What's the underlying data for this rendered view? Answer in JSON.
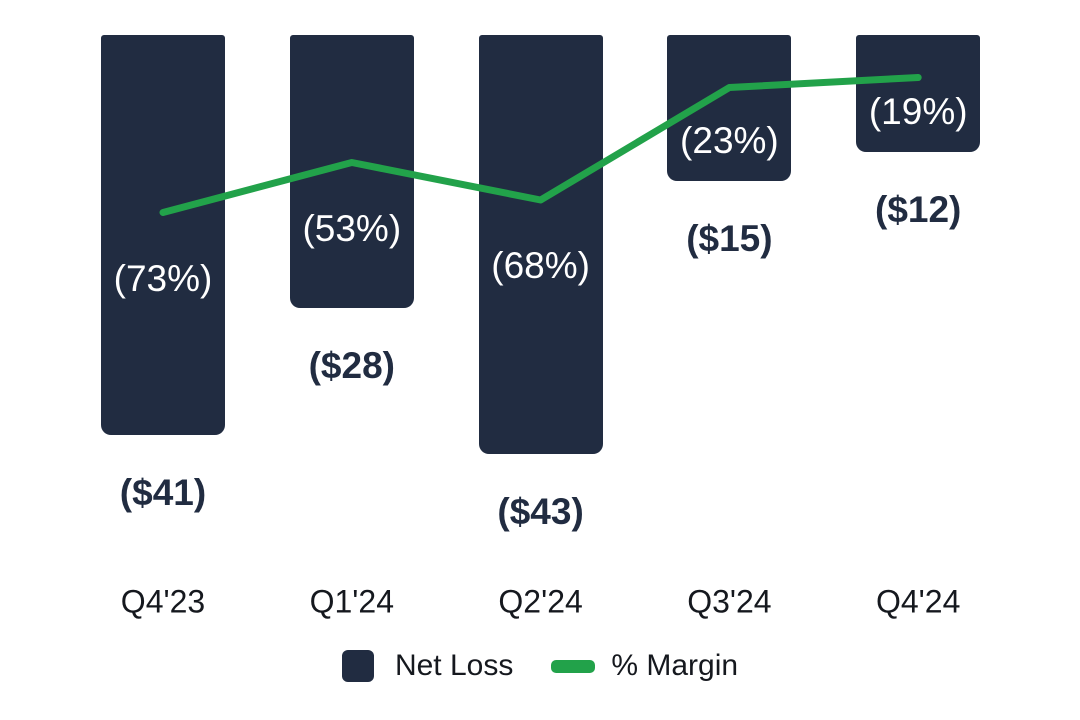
{
  "chart_data": {
    "type": "bar",
    "subtype": "bar-line-combo",
    "title": "",
    "xlabel": "",
    "ylabel": "",
    "grid": false,
    "axes_visible": false,
    "background_color": "#FFFFFF",
    "categories": [
      "Q4'23",
      "Q1'24",
      "Q2'24",
      "Q3'24",
      "Q4'24"
    ],
    "series": [
      {
        "name": "Net Loss",
        "type": "bar",
        "unit": "$ millions (negative, shown in parentheses)",
        "values": [
          -41,
          -28,
          -43,
          -15,
          -12
        ],
        "labels": [
          "($41)",
          "($28)",
          "($43)",
          "($15)",
          "($12)"
        ],
        "color": "#212C41",
        "label_color": "#212C41"
      },
      {
        "name": "% Margin",
        "type": "line",
        "unit": "percent (negative, shown in parentheses)",
        "values": [
          -73,
          -53,
          -68,
          -23,
          -19
        ],
        "labels": [
          "(73%)",
          "(53%)",
          "(68%)",
          "(23%)",
          "(19%)"
        ],
        "color": "#22A24A",
        "label_color": "#FFFFFF"
      }
    ],
    "legend": {
      "position": "bottom",
      "items": [
        {
          "label": "Net Loss",
          "swatch": "square",
          "color": "#212C41"
        },
        {
          "label": "% Margin",
          "swatch": "dash",
          "color": "#22A24A"
        }
      ]
    }
  }
}
